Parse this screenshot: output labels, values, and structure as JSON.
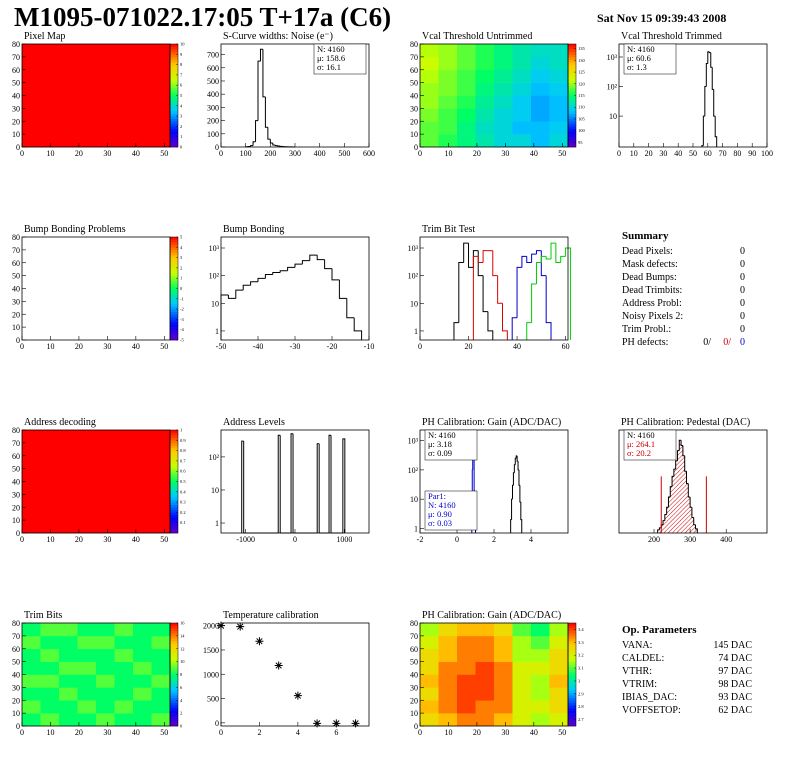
{
  "header": {
    "title": "M1095-071022.17:05 T+17a (C6)",
    "date": "Sat Nov 15 09:39:43 2008"
  },
  "chart_data": [
    {
      "type": "heatmap",
      "title": "Pixel Map",
      "xlim": [
        0,
        52
      ],
      "ylim": [
        0,
        80
      ],
      "xticks": [
        0,
        10,
        20,
        30,
        40,
        50
      ],
      "yticks": [
        0,
        10,
        20,
        30,
        40,
        50,
        60,
        70,
        80
      ],
      "zlim": [
        0,
        10
      ],
      "zticks": [
        0,
        1,
        2,
        3,
        4,
        5,
        6,
        7,
        8,
        9,
        10
      ],
      "colormap": "rainbow",
      "z": [
        [
          10
        ]
      ]
    },
    {
      "type": "histogram",
      "title": "S-Curve widths: Noise (e⁻)",
      "xlim": [
        0,
        600
      ],
      "ylim": [
        0,
        780
      ],
      "xticks": [
        0,
        100,
        200,
        300,
        400,
        500,
        600
      ],
      "yticks": [
        0,
        100,
        200,
        300,
        400,
        500,
        600,
        700
      ],
      "stats_corner": "upper right",
      "stats": [
        {
          "text": "N: 4160",
          "color": "#000000"
        },
        {
          "text": "μ: 158.6",
          "color": "#000000"
        },
        {
          "text": "σ: 16.1",
          "color": "#000000"
        }
      ],
      "series": [
        {
          "color": "#000000",
          "bins": [
            100,
            110,
            120,
            130,
            140,
            150,
            160,
            170,
            180,
            190,
            200,
            210,
            220,
            230,
            240,
            250,
            260,
            270,
            280,
            290,
            300
          ],
          "values": [
            2,
            4,
            10,
            40,
            200,
            650,
            740,
            380,
            150,
            60,
            30,
            15,
            10,
            8,
            5,
            3,
            2,
            1,
            1,
            0
          ]
        }
      ]
    },
    {
      "type": "heatmap",
      "title": "Vcal Threshold Untrimmed",
      "xlim": [
        0,
        52
      ],
      "ylim": [
        0,
        80
      ],
      "xticks": [
        0,
        10,
        20,
        30,
        40,
        50
      ],
      "yticks": [
        0,
        10,
        20,
        30,
        40,
        50,
        60,
        70,
        80
      ],
      "zlim": [
        93,
        137
      ],
      "zticks": [
        95,
        100,
        105,
        110,
        115,
        120,
        125,
        130,
        135
      ],
      "colormap": "rainbow",
      "z": [
        [
          118,
          116,
          114,
          112,
          110,
          110,
          108,
          110
        ],
        [
          118,
          117,
          114,
          111,
          110,
          108,
          108,
          109
        ],
        [
          119,
          117,
          115,
          112,
          110,
          109,
          107,
          108
        ],
        [
          120,
          118,
          116,
          113,
          111,
          109,
          107,
          108
        ],
        [
          120,
          119,
          117,
          114,
          112,
          110,
          108,
          109
        ],
        [
          121,
          119,
          117,
          115,
          113,
          111,
          109,
          110
        ],
        [
          122,
          120,
          118,
          116,
          114,
          112,
          110,
          111
        ],
        [
          121,
          120,
          118,
          116,
          114,
          112,
          111,
          111
        ]
      ]
    },
    {
      "type": "histogram",
      "title": "Vcal Threshold Trimmed",
      "logy": true,
      "xlim": [
        0,
        100
      ],
      "ylim": [
        0.9,
        2750
      ],
      "xticks": [
        0,
        10,
        20,
        30,
        40,
        50,
        60,
        70,
        80,
        90,
        100
      ],
      "yticks": [
        10,
        {
          "value": 100,
          "label": "10²"
        },
        {
          "value": 1000,
          "label": "10³"
        }
      ],
      "stats_corner": "upper left",
      "stats": [
        {
          "text": "N: 4160",
          "color": "#000000"
        },
        {
          "text": "μ: 60.6",
          "color": "#000000"
        },
        {
          "text": "σ:  1.3",
          "color": "#000000"
        }
      ],
      "series": [
        {
          "color": "#000000",
          "bins": [
            56,
            57,
            58,
            59,
            60,
            61,
            62,
            63,
            64,
            65,
            66
          ],
          "values": [
            1,
            10,
            100,
            600,
            1500,
            1400,
            450,
            80,
            10,
            2
          ]
        }
      ]
    },
    {
      "type": "heatmap",
      "title": "Bump Bonding Problems",
      "xlim": [
        0,
        52
      ],
      "ylim": [
        0,
        80
      ],
      "xticks": [
        0,
        10,
        20,
        30,
        40,
        50
      ],
      "yticks": [
        0,
        10,
        20,
        30,
        40,
        50,
        60,
        70,
        80
      ],
      "zlim": [
        -5,
        5
      ],
      "zticks": [
        -5,
        -4,
        -3,
        -2,
        -1,
        0,
        1,
        2,
        3,
        4,
        5
      ],
      "colormap": "rainbow",
      "z": []
    },
    {
      "type": "histogram",
      "title": "Bump Bonding",
      "logy": true,
      "xlim": [
        -50,
        -10
      ],
      "ylim": [
        0.47,
        2500
      ],
      "xticks": [
        -50,
        -40,
        -30,
        -20,
        -10
      ],
      "yticks": [
        1,
        10,
        {
          "value": 100,
          "label": "10²"
        },
        {
          "value": 1000,
          "label": "10³"
        }
      ],
      "series": [
        {
          "color": "#000000",
          "bins": [
            -50,
            -48,
            -46,
            -44,
            -42,
            -40,
            -38,
            -36,
            -34,
            -32,
            -30,
            -28,
            -26,
            -24,
            -22,
            -20,
            -18,
            -16,
            -14,
            -12
          ],
          "values": [
            20,
            15,
            30,
            45,
            60,
            80,
            110,
            130,
            150,
            200,
            260,
            350,
            550,
            380,
            180,
            70,
            15,
            3,
            1
          ]
        }
      ]
    },
    {
      "type": "histogram",
      "title": "Trim Bit Test",
      "logy": true,
      "xlim": [
        0,
        61
      ],
      "ylim": [
        0.47,
        2500
      ],
      "xticks": [
        0,
        20,
        40,
        60
      ],
      "yticks": [
        1,
        10,
        {
          "value": 100,
          "label": "10²"
        },
        {
          "value": 1000,
          "label": "10³"
        }
      ],
      "series": [
        {
          "color": "#000000",
          "bins": [
            14,
            16,
            18,
            20,
            22,
            24,
            26,
            28,
            30
          ],
          "values": [
            2,
            300,
            1500,
            200,
            800,
            100,
            5,
            1
          ]
        },
        {
          "color": "#dd0000",
          "bins": [
            22,
            24,
            26,
            28,
            30,
            32,
            34,
            36
          ],
          "values": [
            500,
            300,
            800,
            800,
            100,
            10,
            1
          ]
        },
        {
          "color": "#0000cc",
          "bins": [
            38,
            40,
            42,
            44,
            46,
            48,
            50,
            52,
            54
          ],
          "values": [
            3,
            200,
            500,
            300,
            600,
            800,
            100,
            2
          ]
        },
        {
          "color": "#00cc00",
          "bins": [
            44,
            46,
            48,
            50,
            52,
            54,
            56,
            58,
            60,
            62
          ],
          "values": [
            2,
            50,
            300,
            500,
            400,
            1500,
            300,
            500,
            1000
          ]
        }
      ]
    },
    {
      "type": "heatmap",
      "title": "Address decoding",
      "xlim": [
        0,
        52
      ],
      "ylim": [
        0,
        80
      ],
      "xticks": [
        0,
        10,
        20,
        30,
        40,
        50
      ],
      "yticks": [
        0,
        10,
        20,
        30,
        40,
        50,
        60,
        70,
        80
      ],
      "zlim": [
        0,
        1
      ],
      "zticks": [
        0.1,
        0.2,
        0.3,
        0.4,
        0.5,
        0.6,
        0.7,
        0.8,
        0.9,
        1
      ],
      "colormap": "rainbow",
      "z": [
        [
          1
        ]
      ]
    },
    {
      "type": "histogram",
      "title": "Address Levels",
      "logy": true,
      "xlim": [
        -1500,
        1500
      ],
      "ylim": [
        0.5,
        650
      ],
      "xticks": [
        -1000,
        0,
        1000
      ],
      "yticks": [
        1,
        10,
        {
          "value": 100,
          "label": "10²"
        }
      ],
      "series": [
        {
          "color": "#000000",
          "bins": [
            -1080,
            -1040,
            -340,
            -300,
            -80,
            -40,
            450,
            490,
            690,
            730,
            970,
            1010
          ],
          "values": [
            300,
            0,
            450,
            0,
            500,
            0,
            250,
            0,
            450,
            0,
            350
          ]
        }
      ]
    },
    {
      "type": "histogram",
      "title": "PH Calibration: Gain (ADC/DAC)",
      "logy": true,
      "xlim": [
        -2,
        6
      ],
      "ylim": [
        0.7,
        2300
      ],
      "xticks": [
        -2,
        0,
        2,
        4
      ],
      "yticks": [
        1,
        10,
        {
          "value": 100,
          "label": "10²"
        },
        {
          "value": 1000,
          "label": "10³"
        }
      ],
      "stats_corner": "upper left",
      "stats": [
        {
          "text": "N: 4160",
          "color": "#000000"
        },
        {
          "text": "μ: 3.18",
          "color": "#000000"
        },
        {
          "text": "σ: 0.09",
          "color": "#000000"
        }
      ],
      "stats_lower": [
        {
          "text": "Par1:",
          "color": "#0000cc"
        },
        {
          "text": "N: 4160",
          "color": "#0000cc"
        },
        {
          "text": "μ: 0.90",
          "color": "#0000cc"
        },
        {
          "text": "σ: 0.03",
          "color": "#0000cc"
        }
      ],
      "series": [
        {
          "color": "#000000",
          "bins": [
            2.9,
            2.95,
            3.0,
            3.05,
            3.1,
            3.15,
            3.2,
            3.25,
            3.3,
            3.35,
            3.4,
            3.45,
            3.5
          ],
          "values": [
            2,
            10,
            30,
            80,
            150,
            250,
            300,
            200,
            100,
            30,
            8,
            2
          ]
        },
        {
          "color": "#0000cc",
          "bins": [
            0.8,
            0.825,
            0.85,
            0.875,
            0.9,
            0.925,
            0.95,
            0.975,
            1.0
          ],
          "values": [
            5,
            100,
            800,
            1000,
            300,
            20,
            2,
            1
          ]
        }
      ]
    },
    {
      "type": "histogram",
      "title": "PH Calibration: Pedestal (DAC)",
      "xlim": [
        103,
        513
      ],
      "ylim": [
        0,
        100
      ],
      "xticks": [
        200,
        300,
        400
      ],
      "yticks": [],
      "stats_corner": "upper left",
      "stats": [
        {
          "text": "N: 4160",
          "color": "#000000"
        },
        {
          "text": "μ: 264.1",
          "color": "#cc0000"
        },
        {
          "text": "σ: 20.2",
          "color": "#cc0000"
        }
      ],
      "cut_lines": [
        220,
        345
      ],
      "series": [
        {
          "color": "#000000",
          "fill_color": "#cc0000",
          "bins": [
            210,
            215,
            220,
            225,
            230,
            235,
            240,
            245,
            250,
            255,
            260,
            265,
            270,
            275,
            280,
            285,
            290,
            295,
            300,
            305,
            310,
            315,
            320
          ],
          "values": [
            3,
            5,
            8,
            12,
            18,
            25,
            35,
            45,
            55,
            62,
            70,
            80,
            90,
            85,
            75,
            60,
            48,
            35,
            25,
            15,
            8,
            4
          ]
        }
      ]
    },
    {
      "type": "heatmap",
      "title": "Trim Bits",
      "xlim": [
        0,
        52
      ],
      "ylim": [
        0,
        80
      ],
      "xticks": [
        0,
        10,
        20,
        30,
        40,
        50
      ],
      "yticks": [
        0,
        10,
        20,
        30,
        40,
        50,
        60,
        70,
        80
      ],
      "zlim": [
        0,
        16
      ],
      "zticks": [
        0,
        2,
        4,
        6,
        8,
        10,
        12,
        14,
        16
      ],
      "colormap": "rainbow",
      "z": [
        [
          8,
          9,
          8,
          8,
          9,
          8,
          8,
          9
        ],
        [
          9,
          8,
          8,
          9,
          8,
          9,
          8,
          8
        ],
        [
          8,
          8,
          9,
          8,
          8,
          8,
          9,
          8
        ],
        [
          9,
          9,
          8,
          8,
          9,
          8,
          8,
          9
        ],
        [
          8,
          8,
          9,
          9,
          8,
          8,
          9,
          8
        ],
        [
          8,
          9,
          8,
          8,
          8,
          9,
          8,
          8
        ],
        [
          9,
          8,
          8,
          9,
          9,
          8,
          8,
          9
        ],
        [
          8,
          9,
          9,
          8,
          8,
          9,
          8,
          8
        ]
      ]
    },
    {
      "type": "scatter",
      "title": "Temperature calibration",
      "xlim": [
        0,
        7.7
      ],
      "ylim": [
        -65,
        2055
      ],
      "xticks": [
        0,
        2,
        4,
        6
      ],
      "yticks": [
        0,
        500,
        1000,
        1500,
        2000
      ],
      "x": [
        0,
        1,
        2,
        3,
        4,
        5,
        6,
        7
      ],
      "values": [
        2000,
        1980,
        1680,
        1180,
        560,
        -10,
        -10,
        -10
      ],
      "color": "#000000"
    },
    {
      "type": "heatmap",
      "title": "PH Calibration: Gain (ADC/DAC)",
      "xlim": [
        0,
        52
      ],
      "ylim": [
        0,
        80
      ],
      "xticks": [
        0,
        10,
        20,
        30,
        40,
        50
      ],
      "yticks": [
        0,
        10,
        20,
        30,
        40,
        50,
        60,
        70,
        80
      ],
      "zlim": [
        2.65,
        3.45
      ],
      "zticks": [
        2.7,
        2.8,
        2.9,
        3,
        3.1,
        3.2,
        3.3,
        3.4
      ],
      "colormap": "rainbow",
      "z": [
        [
          3.25,
          3.3,
          3.35,
          3.35,
          3.3,
          3.2,
          3.15,
          3.2
        ],
        [
          3.3,
          3.35,
          3.4,
          3.35,
          3.35,
          3.2,
          3.2,
          3.25
        ],
        [
          3.25,
          3.35,
          3.4,
          3.4,
          3.35,
          3.2,
          3.15,
          3.25
        ],
        [
          3.3,
          3.35,
          3.4,
          3.4,
          3.35,
          3.2,
          3.15,
          3.3
        ],
        [
          3.25,
          3.35,
          3.35,
          3.4,
          3.35,
          3.2,
          3.2,
          3.25
        ],
        [
          3.25,
          3.3,
          3.35,
          3.35,
          3.3,
          3.15,
          3.15,
          3.25
        ],
        [
          3.2,
          3.3,
          3.35,
          3.35,
          3.3,
          3.15,
          3.1,
          3.2
        ],
        [
          3.15,
          3.25,
          3.3,
          3.3,
          3.25,
          3.1,
          3.05,
          3.15
        ]
      ]
    }
  ],
  "summary": {
    "title": "Summary",
    "rows": [
      {
        "label": "Dead Pixels:",
        "value": "0"
      },
      {
        "label": "Mask defects:",
        "value": "0"
      },
      {
        "label": "Dead Bumps:",
        "value": "0"
      },
      {
        "label": "Dead Trimbits:",
        "value": "0"
      },
      {
        "label": "Address Probl:",
        "value": "0"
      },
      {
        "label": "Noisy Pixels 2:",
        "value": "0"
      },
      {
        "label": "Trim Probl.:",
        "value": "0"
      }
    ],
    "ph_defects": {
      "label": "PH defects:",
      "values": [
        "0/",
        "0/",
        "0"
      ]
    }
  },
  "op_parameters": {
    "title": "Op. Parameters",
    "rows": [
      {
        "name": "VANA:",
        "value": "145 DAC"
      },
      {
        "name": "CALDEL:",
        "value": "74 DAC"
      },
      {
        "name": "VTHR:",
        "value": "97 DAC"
      },
      {
        "name": "VTRIM:",
        "value": "98 DAC"
      },
      {
        "name": "IBIAS_DAC:",
        "value": "93 DAC"
      },
      {
        "name": "VOFFSETOP:",
        "value": "62 DAC"
      }
    ]
  }
}
